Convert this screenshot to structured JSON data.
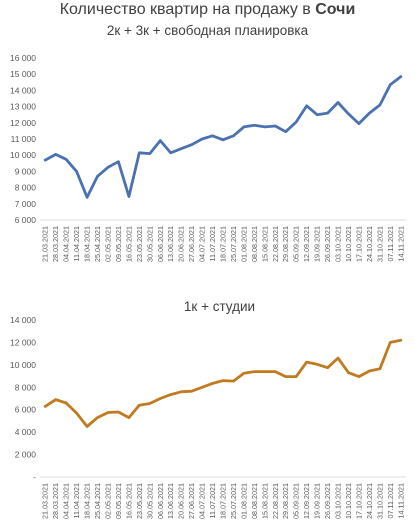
{
  "title_main": "Количество квартир на продажу в ",
  "title_city": "Сочи",
  "chart_data": [
    {
      "type": "line",
      "title": "2к + 3к + свободная планировка",
      "color": "#4a72b0",
      "grid": false,
      "ylim": [
        6000,
        16000
      ],
      "yticks": [
        "6 000",
        "7 000",
        "8 000",
        "9 000",
        "10 000",
        "11 000",
        "12 000",
        "13 000",
        "14 000",
        "15 000",
        "16 000"
      ],
      "x": [
        "21.03.2021",
        "28.03.2021",
        "04.04.2021",
        "11.04.2021",
        "18.04.2021",
        "25.04.2021",
        "02.05.2021",
        "09.05.2021",
        "16.05.2021",
        "23.05.2021",
        "30.05.2021",
        "06.06.2021",
        "13.06.2021",
        "20.06.2021",
        "27.06.2021",
        "04.07.2021",
        "11.07.2021",
        "18.07.2021",
        "25.07.2021",
        "01.08.2021",
        "08.08.2021",
        "15.08.2021",
        "22.08.2021",
        "29.08.2021",
        "05.09.2021",
        "12.09.2021",
        "19.09.2021",
        "26.09.2021",
        "03.10.2021",
        "10.10.2021",
        "17.10.2021",
        "24.10.2021",
        "31.10.2021",
        "07.11.2021",
        "14.11.2021"
      ],
      "values": [
        9700,
        10050,
        9750,
        9000,
        7400,
        8700,
        9250,
        9600,
        7450,
        10150,
        10100,
        10900,
        10150,
        10400,
        10650,
        11000,
        11200,
        10950,
        11200,
        11750,
        11850,
        11750,
        11800,
        11450,
        12050,
        13050,
        12500,
        12600,
        13250,
        12550,
        11950,
        12600,
        13100,
        14350,
        14850
      ]
    },
    {
      "type": "line",
      "title": "1к + студии",
      "color": "#c07a20",
      "grid": false,
      "ylim": [
        0,
        14000
      ],
      "yticks": [
        "-",
        "2 000",
        "4 000",
        "6 000",
        "8 000",
        "10 000",
        "12 000",
        "14 000"
      ],
      "x": [
        "21.03.2021",
        "28.03.2021",
        "04.04.2021",
        "11.04.2021",
        "18.04.2021",
        "25.04.2021",
        "02.05.2021",
        "09.05.2021",
        "16.05.2021",
        "23.05.2021",
        "30.05.2021",
        "06.06.2021",
        "13.06.2021",
        "20.06.2021",
        "27.06.2021",
        "04.07.2021",
        "11.07.2021",
        "18.07.2021",
        "25.07.2021",
        "01.08.2021",
        "08.08.2021",
        "15.08.2021",
        "22.08.2021",
        "29.08.2021",
        "05.09.2021",
        "12.09.2021",
        "19.09.2021",
        "26.09.2021",
        "03.10.2021",
        "10.10.2021",
        "17.10.2021",
        "24.10.2021",
        "31.10.2021",
        "07.11.2021",
        "14.11.2021"
      ],
      "values": [
        6300,
        6900,
        6600,
        5700,
        4500,
        5300,
        5750,
        5800,
        5300,
        6400,
        6550,
        7000,
        7350,
        7600,
        7650,
        8000,
        8350,
        8600,
        8550,
        9250,
        9400,
        9400,
        9400,
        8950,
        8950,
        10250,
        10050,
        9750,
        10600,
        9300,
        8950,
        9450,
        9650,
        12000,
        12200
      ]
    }
  ]
}
